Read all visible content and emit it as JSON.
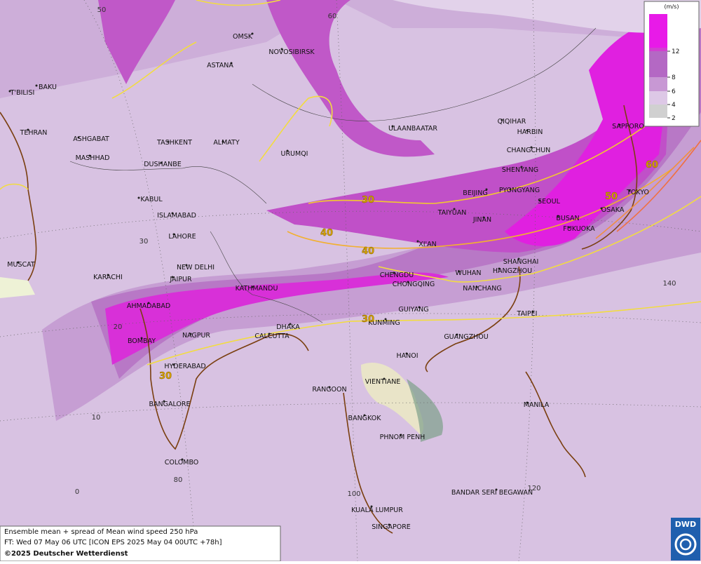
{
  "map": {
    "cities": [
      "OMSK",
      "NOVOSIBIRSK",
      "ASTANA",
      "T'BILISI",
      "BAKU",
      "TEHRAN",
      "ASHGABAT",
      "MASHHAD",
      "TASHKENT",
      "DUSHANBE",
      "ALMATY",
      "URUMQI",
      "ULAANBAATAR",
      "QIQIHAR",
      "HARBIN",
      "CHANGCHUN",
      "SAPPORO",
      "SHENYANG",
      "PYONGYANG",
      "BEIJING",
      "SEOUL",
      "TOKYO",
      "TAIYUAN",
      "JINAN",
      "BUSAN",
      "OSAKA",
      "FUKUOKA",
      "KABUL",
      "ISLAMABAD",
      "LAHORE",
      "XI'AN",
      "MUSCAT",
      "NEW DELHI",
      "SHANGHAI",
      "KARACHI",
      "JAIPUR",
      "CHENGDU",
      "WUHAN",
      "HANGZHOU",
      "KATHMANDU",
      "CHONGQING",
      "NANCHANG",
      "AHMADABAD",
      "GUIYANG",
      "TAIPEI",
      "KUNMING",
      "DHAKA",
      "BOMBAY",
      "NAGPUR",
      "CALCUTTA",
      "GUANGZHOU",
      "HANOI",
      "HYDERABAD",
      "VIENTIANE",
      "RANGOON",
      "BANGALORE",
      "BANGKOK",
      "MANILA",
      "PHNOM PENH",
      "COLOMBO",
      "BANDAR SERI BEGAWAN",
      "KUALA LUMPUR",
      "SINGAPORE"
    ],
    "contour_labels": [
      30,
      40,
      40,
      30,
      30,
      50,
      60
    ],
    "graticule_labels": [
      50,
      60,
      30,
      20,
      10,
      0,
      80,
      100,
      120,
      140
    ],
    "legend": {
      "unit": "(m/s)",
      "values": [
        2,
        4,
        6,
        8,
        12
      ]
    },
    "caption": [
      "Ensemble mean + spread of Mean wind speed 250 hPa",
      "FT: Wed 07 May 06 UTC [ICON EPS 2025 May 04 00UTC +78h]",
      "©2025 Deutscher Wetterdienst"
    ],
    "logo": "DWD"
  }
}
